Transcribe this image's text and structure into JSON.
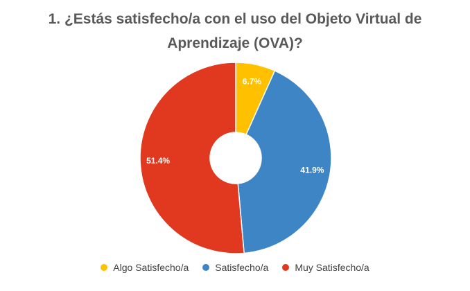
{
  "chart_data": {
    "type": "pie",
    "variant": "donut",
    "title": "1. ¿Estás satisfecho/a con el uso del Objeto Virtual de Aprendizaje (OVA)?",
    "title_lines": [
      "1. ¿Estás satisfecho/a con el uso del Objeto Virtual de",
      "Aprendizaje (OVA)?"
    ],
    "categories": [
      "Algo Satisfecho/a",
      "Satisfecho/a",
      "Muy Satisfecho/a"
    ],
    "values": [
      6.7,
      41.9,
      51.4
    ],
    "data_labels": [
      "6.7%",
      "41.9%",
      "51.4%"
    ],
    "colors": [
      "#FFC000",
      "#3E85C6",
      "#E0391F"
    ],
    "legend_position": "bottom",
    "label_color": "#ffffff"
  }
}
